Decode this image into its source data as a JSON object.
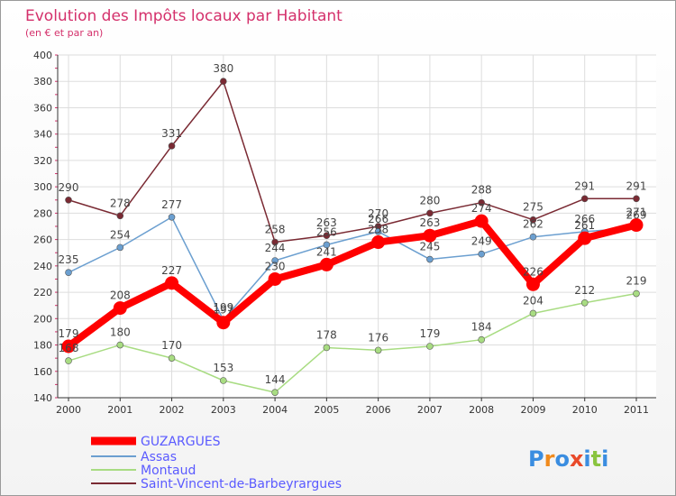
{
  "chart_data": {
    "type": "line",
    "title": "Evolution des Impôts locaux par Habitant",
    "subtitle": "(en € et par an)",
    "xlabel": "",
    "ylabel": "",
    "x": [
      "2000",
      "2001",
      "2002",
      "2003",
      "2004",
      "2005",
      "2006",
      "2007",
      "2008",
      "2009",
      "2010",
      "2011"
    ],
    "ylim": [
      140,
      400
    ],
    "yticks": [
      "140",
      "160",
      "180",
      "200",
      "220",
      "240",
      "260",
      "280",
      "300",
      "320",
      "340",
      "360",
      "380",
      "400"
    ],
    "grid": true,
    "legend_position": "bottom-left",
    "series": [
      {
        "name": "Saint-Vincent-de-Barbeyrargues",
        "color": "#7a2a33",
        "values": [
          290,
          278,
          331,
          380,
          258,
          263,
          270,
          280,
          288,
          275,
          291,
          291
        ],
        "labels": [
          "290",
          "278",
          "331",
          "380",
          "258",
          "263",
          "270",
          "280",
          "288",
          "275",
          "291",
          "291"
        ]
      },
      {
        "name": "Assas",
        "color": "#6b9fd0",
        "values": [
          235,
          254,
          277,
          199,
          244,
          256,
          266,
          245,
          249,
          262,
          266,
          269
        ],
        "labels": [
          "235",
          "254",
          "277",
          "199",
          "244",
          "256",
          "266",
          "245",
          "249",
          "262",
          "266",
          "269"
        ]
      },
      {
        "name": "Montaud",
        "color": "#a8dc82",
        "values": [
          168,
          180,
          170,
          153,
          144,
          178,
          176,
          179,
          184,
          204,
          212,
          219
        ],
        "labels": [
          "168",
          "180",
          "170",
          "153",
          "144",
          "178",
          "176",
          "179",
          "184",
          "204",
          "212",
          "219"
        ]
      },
      {
        "name": "GUZARGUES",
        "color": "#ff0000",
        "values": [
          179,
          208,
          227,
          197,
          230,
          241,
          258,
          263,
          274,
          226,
          261,
          271
        ],
        "labels": [
          "179",
          "208",
          "227",
          "197",
          "230",
          "241",
          "258",
          "263",
          "274",
          "226",
          "261",
          "271"
        ]
      }
    ],
    "legend": [
      "GUZARGUES",
      "Assas",
      "Montaud",
      "Saint-Vincent-de-Barbeyrargues"
    ]
  },
  "logo": {
    "text": "Proxiti",
    "letters": [
      "P",
      "r",
      "o",
      "x",
      "i",
      "t",
      "i"
    ],
    "colors": [
      "#3a8de0",
      "#f08a1c",
      "#3a8de0",
      "#e94a2a",
      "#3a8de0",
      "#8ac43f",
      "#3a8de0"
    ]
  }
}
